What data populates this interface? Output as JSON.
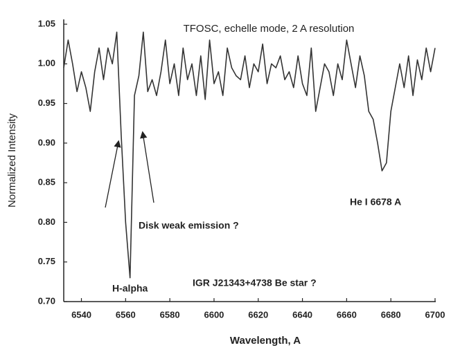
{
  "chart_data": {
    "type": "line",
    "title": "TFOSC, echelle mode, 2 A resolution",
    "x_label": "Wavelength, A",
    "y_label": "Normalized Intensity",
    "annotations": [
      "Disk weak emission ?",
      "He I  6678 A",
      "IGR J21343+4738  Be star ?",
      "H-alpha"
    ],
    "x": [
      6532,
      6534,
      6536,
      6538,
      6540,
      6542,
      6544,
      6546,
      6548,
      6550,
      6552,
      6554,
      6556,
      6558,
      6560,
      6562,
      6564,
      6566,
      6568,
      6570,
      6572,
      6574,
      6576,
      6578,
      6580,
      6582,
      6584,
      6586,
      6588,
      6590,
      6592,
      6594,
      6596,
      6598,
      6600,
      6602,
      6604,
      6606,
      6608,
      6610,
      6612,
      6614,
      6616,
      6618,
      6620,
      6622,
      6624,
      6626,
      6628,
      6630,
      6632,
      6634,
      6636,
      6638,
      6640,
      6642,
      6644,
      6646,
      6648,
      6650,
      6652,
      6654,
      6656,
      6658,
      6660,
      6662,
      6664,
      6666,
      6668,
      6670,
      6672,
      6674,
      6676,
      6678,
      6680,
      6682,
      6684,
      6686,
      6688,
      6690,
      6692,
      6694,
      6696,
      6698,
      6700
    ],
    "series": [
      {
        "color": "#333333",
        "values": [
          0.995,
          1.03,
          1.0,
          0.965,
          0.99,
          0.97,
          0.94,
          0.99,
          1.02,
          0.98,
          1.02,
          1.0,
          1.04,
          0.91,
          0.8,
          0.73,
          0.96,
          0.985,
          1.04,
          0.965,
          0.98,
          0.96,
          0.99,
          1.03,
          0.975,
          1.0,
          0.96,
          1.02,
          0.98,
          1.0,
          0.96,
          1.01,
          0.955,
          1.03,
          0.975,
          0.99,
          0.96,
          1.02,
          0.995,
          0.985,
          0.98,
          1.01,
          0.97,
          1.0,
          0.99,
          1.025,
          0.975,
          1.0,
          0.995,
          1.01,
          0.98,
          0.99,
          0.97,
          1.01,
          0.975,
          0.96,
          1.02,
          0.94,
          0.97,
          1.0,
          0.99,
          0.96,
          1.0,
          0.98,
          1.03,
          1.0,
          0.97,
          1.01,
          0.985,
          0.94,
          0.93,
          0.9,
          0.865,
          0.875,
          0.94,
          0.97,
          1.0,
          0.97,
          1.01,
          0.96,
          1.005,
          0.98,
          1.02,
          0.99,
          1.02
        ]
      }
    ],
    "xlim": [
      6532,
      6700
    ],
    "ylim": [
      0.7,
      1.05
    ],
    "xticks": [
      6540,
      6560,
      6580,
      6600,
      6620,
      6640,
      6660,
      6680,
      6700
    ],
    "yticks": [
      {
        "value": 0.7,
        "label": "0.70"
      },
      0.75,
      {
        "value": 0.8,
        "label": "0.80"
      },
      0.85,
      {
        "value": 0.9,
        "label": "0.90"
      },
      0.95,
      {
        "value": 1.0,
        "label": "1.00"
      },
      1.05
    ]
  }
}
